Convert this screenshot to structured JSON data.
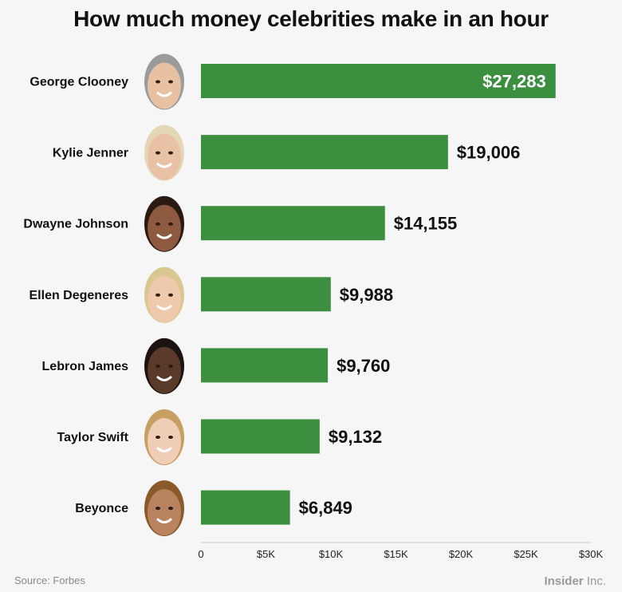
{
  "title": "How much money celebrities make in an hour",
  "footer": {
    "source": "Source: Forbes",
    "brand_bold": "Insider",
    "brand_light": " Inc."
  },
  "colors": {
    "bar": "#3d8f40",
    "axis": "#cccccc",
    "background": "#f6f6f6"
  },
  "chart_data": {
    "type": "bar",
    "orientation": "horizontal",
    "title": "How much money celebrities make in an hour",
    "categories": [
      "George Clooney",
      "Kylie Jenner",
      "Dwayne Johnson",
      "Ellen Degeneres",
      "Lebron James",
      "Taylor Swift",
      "Beyonce"
    ],
    "values": [
      27283,
      19006,
      14155,
      9988,
      9760,
      9132,
      6849
    ],
    "value_labels": [
      "$27,283",
      "$19,006",
      "$14,155",
      "$9,988",
      "$9,760",
      "$9,132",
      "$6,849"
    ],
    "xlim": [
      0,
      30000
    ],
    "xticks": [
      0,
      5000,
      10000,
      15000,
      20000,
      25000,
      30000
    ],
    "xtick_labels": [
      "0",
      "$5K",
      "$10K",
      "$15K",
      "$20K",
      "$25K",
      "$30K"
    ],
    "grid": false,
    "icons": [
      "george-clooney-face-icon",
      "kylie-jenner-face-icon",
      "dwayne-johnson-face-icon",
      "ellen-degeneres-face-icon",
      "lebron-james-face-icon",
      "taylor-swift-face-icon",
      "beyonce-face-icon"
    ]
  }
}
